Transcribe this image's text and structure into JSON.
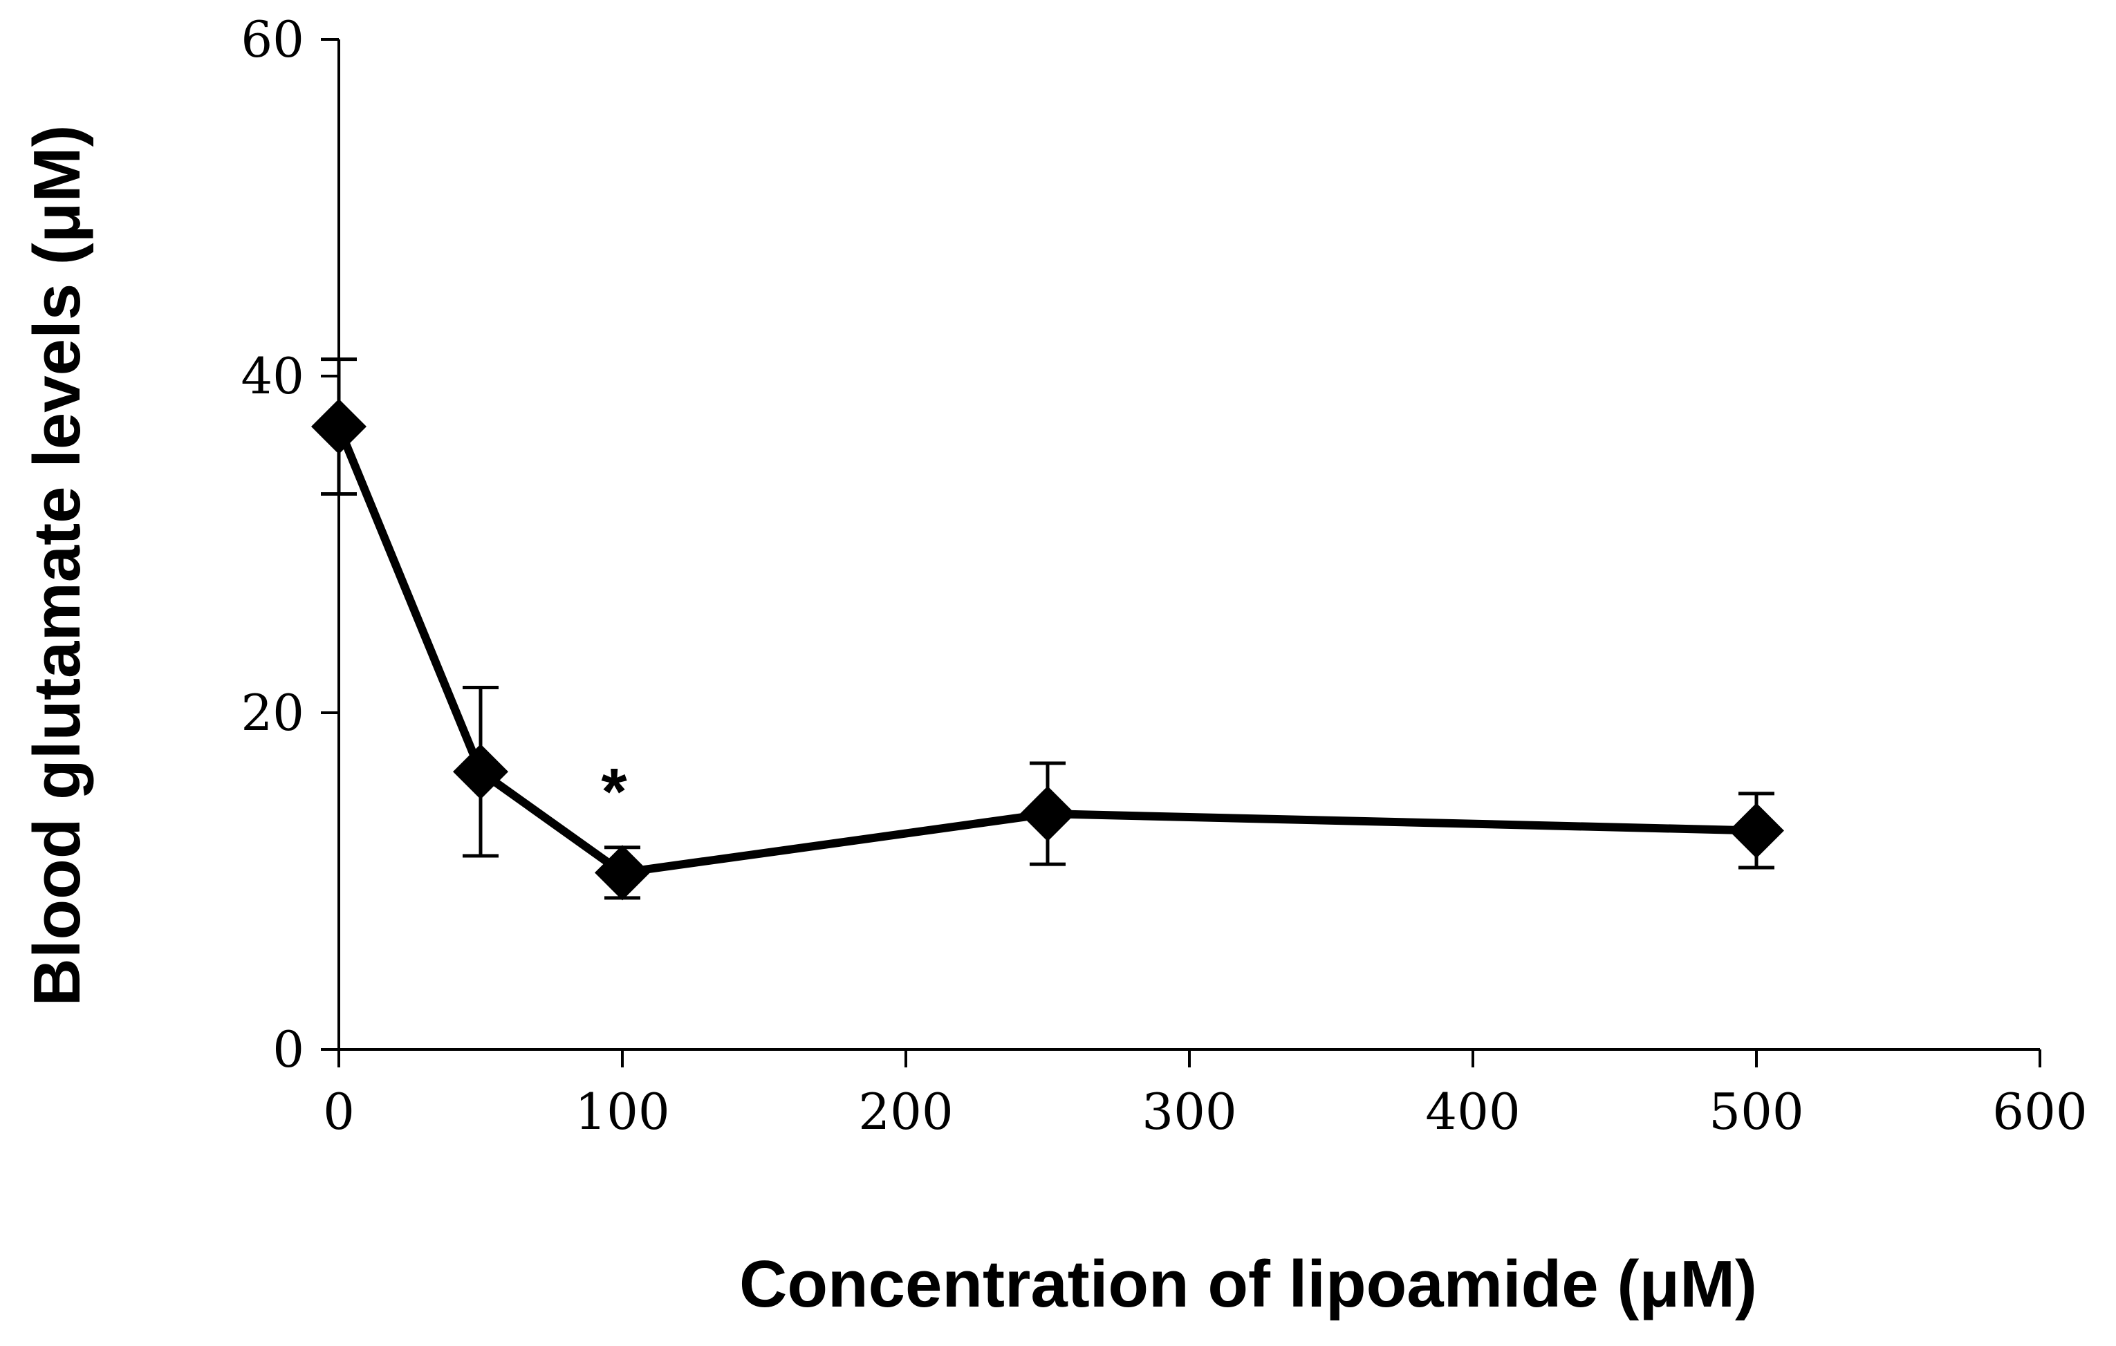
{
  "chart_data": {
    "type": "line",
    "title": "",
    "xlabel": "Concentration of lipoamide (μM)",
    "ylabel": "Blood glutamate levels (μM)",
    "xlim": [
      0,
      600
    ],
    "ylim": [
      0,
      60
    ],
    "xticks": [
      0,
      100,
      200,
      300,
      400,
      500,
      600
    ],
    "yticks": [
      0,
      20,
      40,
      60
    ],
    "grid": false,
    "legend": "none",
    "colors": {
      "line": "#000000",
      "marker": "#000000"
    },
    "marker": "diamond",
    "series": [
      {
        "x": [
          0,
          50,
          100,
          250,
          500
        ],
        "y": [
          37,
          16.5,
          10.5,
          14,
          13
        ],
        "err": [
          4,
          5,
          1.5,
          3,
          2.2
        ]
      }
    ],
    "annotations": [
      {
        "text": "*",
        "x": 100,
        "y": 15.2
      }
    ]
  }
}
